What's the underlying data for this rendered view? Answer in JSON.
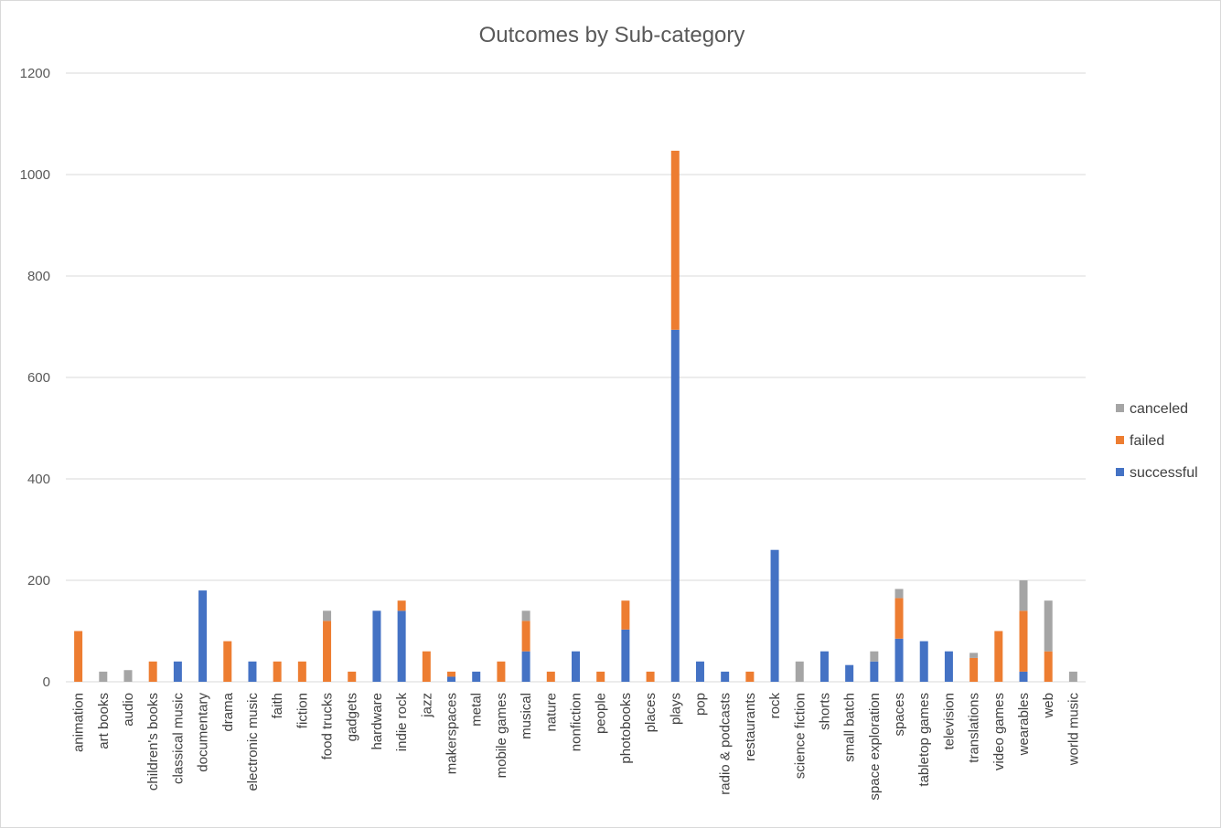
{
  "chart_data": {
    "type": "bar",
    "stacked": true,
    "title": "Outcomes by Sub-category",
    "xlabel": "",
    "ylabel": "",
    "ylim": [
      0,
      1200
    ],
    "yticks": [
      0,
      200,
      400,
      600,
      800,
      1000,
      1200
    ],
    "grid": true,
    "legend_position": "right",
    "categories": [
      "animation",
      "art books",
      "audio",
      "children's books",
      "classical music",
      "documentary",
      "drama",
      "electronic music",
      "faith",
      "fiction",
      "food trucks",
      "gadgets",
      "hardware",
      "indie rock",
      "jazz",
      "makerspaces",
      "metal",
      "mobile games",
      "musical",
      "nature",
      "nonfiction",
      "people",
      "photobooks",
      "places",
      "plays",
      "pop",
      "radio & podcasts",
      "restaurants",
      "rock",
      "science fiction",
      "shorts",
      "small batch",
      "space exploration",
      "spaces",
      "tabletop games",
      "television",
      "translations",
      "video games",
      "wearables",
      "web",
      "world music"
    ],
    "series": [
      {
        "name": "successful",
        "color": "#4472C4",
        "values": [
          0,
          0,
          0,
          0,
          40,
          180,
          0,
          40,
          0,
          0,
          0,
          0,
          140,
          140,
          0,
          10,
          20,
          0,
          60,
          0,
          60,
          0,
          103,
          0,
          694,
          40,
          20,
          0,
          260,
          0,
          60,
          33,
          40,
          85,
          80,
          60,
          0,
          0,
          20,
          0,
          0
        ]
      },
      {
        "name": "failed",
        "color": "#ED7D31",
        "values": [
          100,
          0,
          0,
          40,
          0,
          0,
          80,
          0,
          40,
          40,
          120,
          20,
          0,
          20,
          60,
          10,
          0,
          40,
          60,
          20,
          0,
          20,
          57,
          20,
          353,
          0,
          0,
          20,
          0,
          0,
          0,
          0,
          0,
          80,
          0,
          0,
          47,
          100,
          120,
          60,
          0
        ]
      },
      {
        "name": "canceled",
        "color": "#A5A5A5",
        "values": [
          0,
          20,
          23,
          0,
          0,
          0,
          0,
          0,
          0,
          0,
          20,
          0,
          0,
          0,
          0,
          0,
          0,
          0,
          20,
          0,
          0,
          0,
          0,
          0,
          0,
          0,
          0,
          0,
          0,
          40,
          0,
          0,
          20,
          18,
          0,
          0,
          10,
          0,
          60,
          100,
          20
        ]
      }
    ],
    "legend_order": [
      "canceled",
      "failed",
      "successful"
    ]
  }
}
